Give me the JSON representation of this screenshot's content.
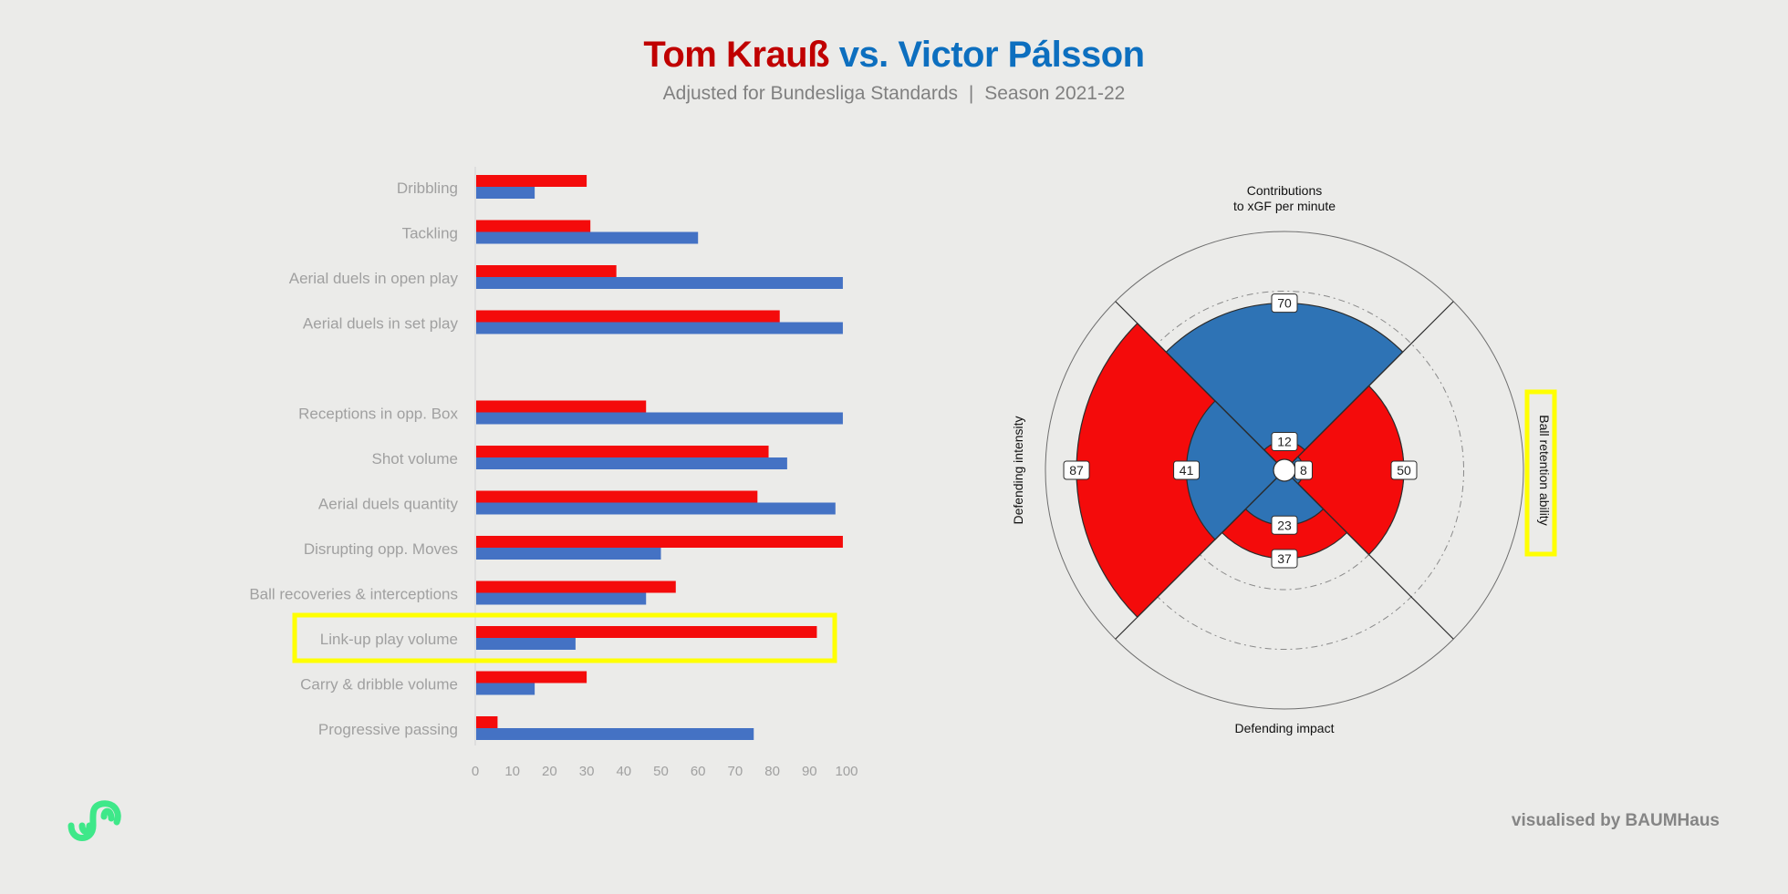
{
  "header": {
    "player1": "Tom Krauß",
    "vs": "vs.",
    "player2": "Victor Pálsson",
    "subtitle_left": "Adjusted for Bundesliga Standards",
    "subtitle_sep": "|",
    "subtitle_right": "Season 2021-22"
  },
  "footer": {
    "credit": "visualised by BAUMHaus"
  },
  "colors": {
    "player1": "#f40b0b",
    "player2": "#4472c4",
    "radar_blue": "#2e73b5",
    "highlight": "#ffff00",
    "label_gray": "#a0a0a0",
    "logo": "#3ee889"
  },
  "chart_data": [
    {
      "type": "bar",
      "orientation": "horizontal",
      "categories": [
        "Dribbling",
        "Tackling",
        "Aerial duels in open play",
        "Aerial duels in set play",
        "",
        "Receptions in opp. Box",
        "Shot volume",
        "Aerial duels quantity",
        "Disrupting opp. Moves",
        "Ball recoveries & interceptions",
        "Link-up play volume",
        "Carry & dribble volume",
        "Progressive passing"
      ],
      "series": [
        {
          "name": "Tom Krauß",
          "color": "#f40b0b",
          "values": [
            30,
            31,
            38,
            82,
            null,
            46,
            79,
            76,
            99,
            54,
            92,
            30,
            6
          ]
        },
        {
          "name": "Victor Pálsson",
          "color": "#4472c4",
          "values": [
            16,
            60,
            99,
            99,
            null,
            99,
            84,
            97,
            50,
            46,
            27,
            16,
            75
          ]
        }
      ],
      "xlim": [
        0,
        100
      ],
      "xticks": [
        0,
        10,
        20,
        30,
        40,
        50,
        60,
        70,
        80,
        90,
        100
      ],
      "highlighted_category": "Link-up play volume",
      "grid": false
    },
    {
      "type": "polar-area",
      "axes": [
        {
          "label": "Contributions\nto xGF per minute",
          "position": "top",
          "values": [
            70,
            12
          ]
        },
        {
          "label": "Ball retention ability",
          "position": "right",
          "values": [
            50,
            8
          ],
          "highlighted": true
        },
        {
          "label": "Defending impact",
          "position": "bottom",
          "values": [
            37,
            23
          ]
        },
        {
          "label": "Defending intensity",
          "position": "left",
          "values": [
            87,
            41
          ]
        }
      ],
      "layers_outer_to_inner": [
        "outer",
        "inner"
      ],
      "colors": {
        "top": [
          "#2e73b5",
          "#f40b0b"
        ],
        "right": [
          "#f40b0b",
          "#2e73b5"
        ],
        "bottom": [
          "#f40b0b",
          "#2e73b5"
        ],
        "left": [
          "#f40b0b",
          "#2e73b5"
        ]
      },
      "rlim": [
        0,
        100
      ],
      "rings": [
        50,
        75,
        100
      ]
    }
  ]
}
